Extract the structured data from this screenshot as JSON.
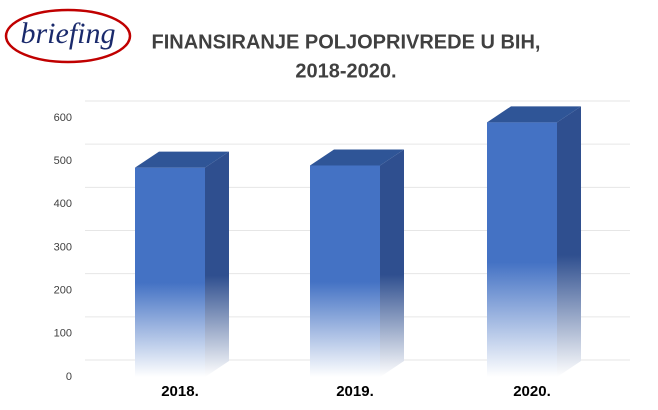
{
  "logo": "briefing",
  "chart_data": {
    "type": "bar3d",
    "title": [
      "FINANSIRANJE POLJOPRIVREDE U BIH,",
      "2018-2020."
    ],
    "categories": [
      "2018.",
      "2019.",
      "2020."
    ],
    "values": [
      485,
      490,
      590
    ],
    "color": "#4472c4",
    "ylim": [
      0,
      600
    ],
    "yticks": [
      0,
      100,
      200,
      300,
      400,
      500,
      600
    ],
    "grid": true
  }
}
